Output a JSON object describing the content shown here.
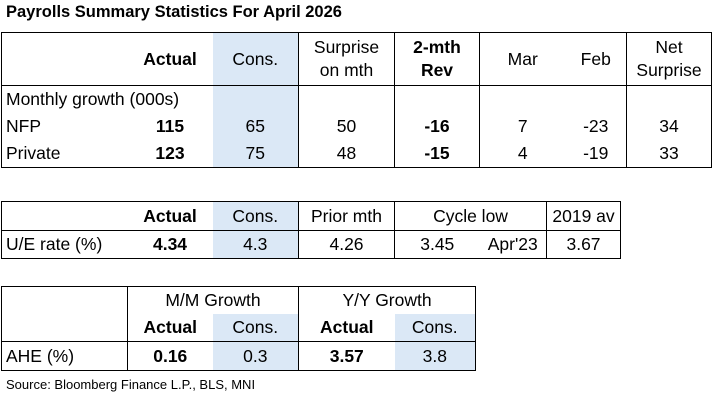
{
  "title": "Payrolls Summary Statistics For April 2026",
  "source": "Source: Bloomberg Finance L.P., BLS, MNI",
  "payrolls": {
    "headers": {
      "actual": "Actual",
      "cons": "Cons.",
      "surprise_line1": "Surprise",
      "surprise_line2": "on mth",
      "rev_line1": "2-mth",
      "rev_line2": "Rev",
      "mar": "Mar",
      "feb": "Feb",
      "net_line1": "Net",
      "net_line2": "Surprise"
    },
    "section_label": "Monthly growth (000s)",
    "rows": [
      {
        "label": "NFP",
        "actual": "115",
        "cons": "65",
        "surprise": "50",
        "rev": "-16",
        "mar": "7",
        "feb": "-23",
        "net": "34"
      },
      {
        "label": "Private",
        "actual": "123",
        "cons": "75",
        "surprise": "48",
        "rev": "-15",
        "mar": "4",
        "feb": "-19",
        "net": "33"
      }
    ]
  },
  "unemployment": {
    "headers": {
      "actual": "Actual",
      "cons": "Cons.",
      "prior": "Prior mth",
      "cycle_low": "Cycle low",
      "av2019": "2019 av"
    },
    "row": {
      "label": "U/E rate (%)",
      "actual": "4.34",
      "cons": "4.3",
      "prior": "4.26",
      "cycle_low_value": "3.45",
      "cycle_low_date": "Apr'23",
      "av2019": "3.67"
    }
  },
  "earnings": {
    "headers": {
      "mm": "M/M Growth",
      "yy": "Y/Y Growth",
      "mm_actual": "Actual",
      "mm_cons": "Cons.",
      "yy_actual": "Actual",
      "yy_cons": "Cons."
    },
    "row": {
      "label": "AHE (%)",
      "mm_actual": "0.16",
      "mm_cons": "0.3",
      "yy_actual": "3.57",
      "yy_cons": "3.8"
    }
  }
}
